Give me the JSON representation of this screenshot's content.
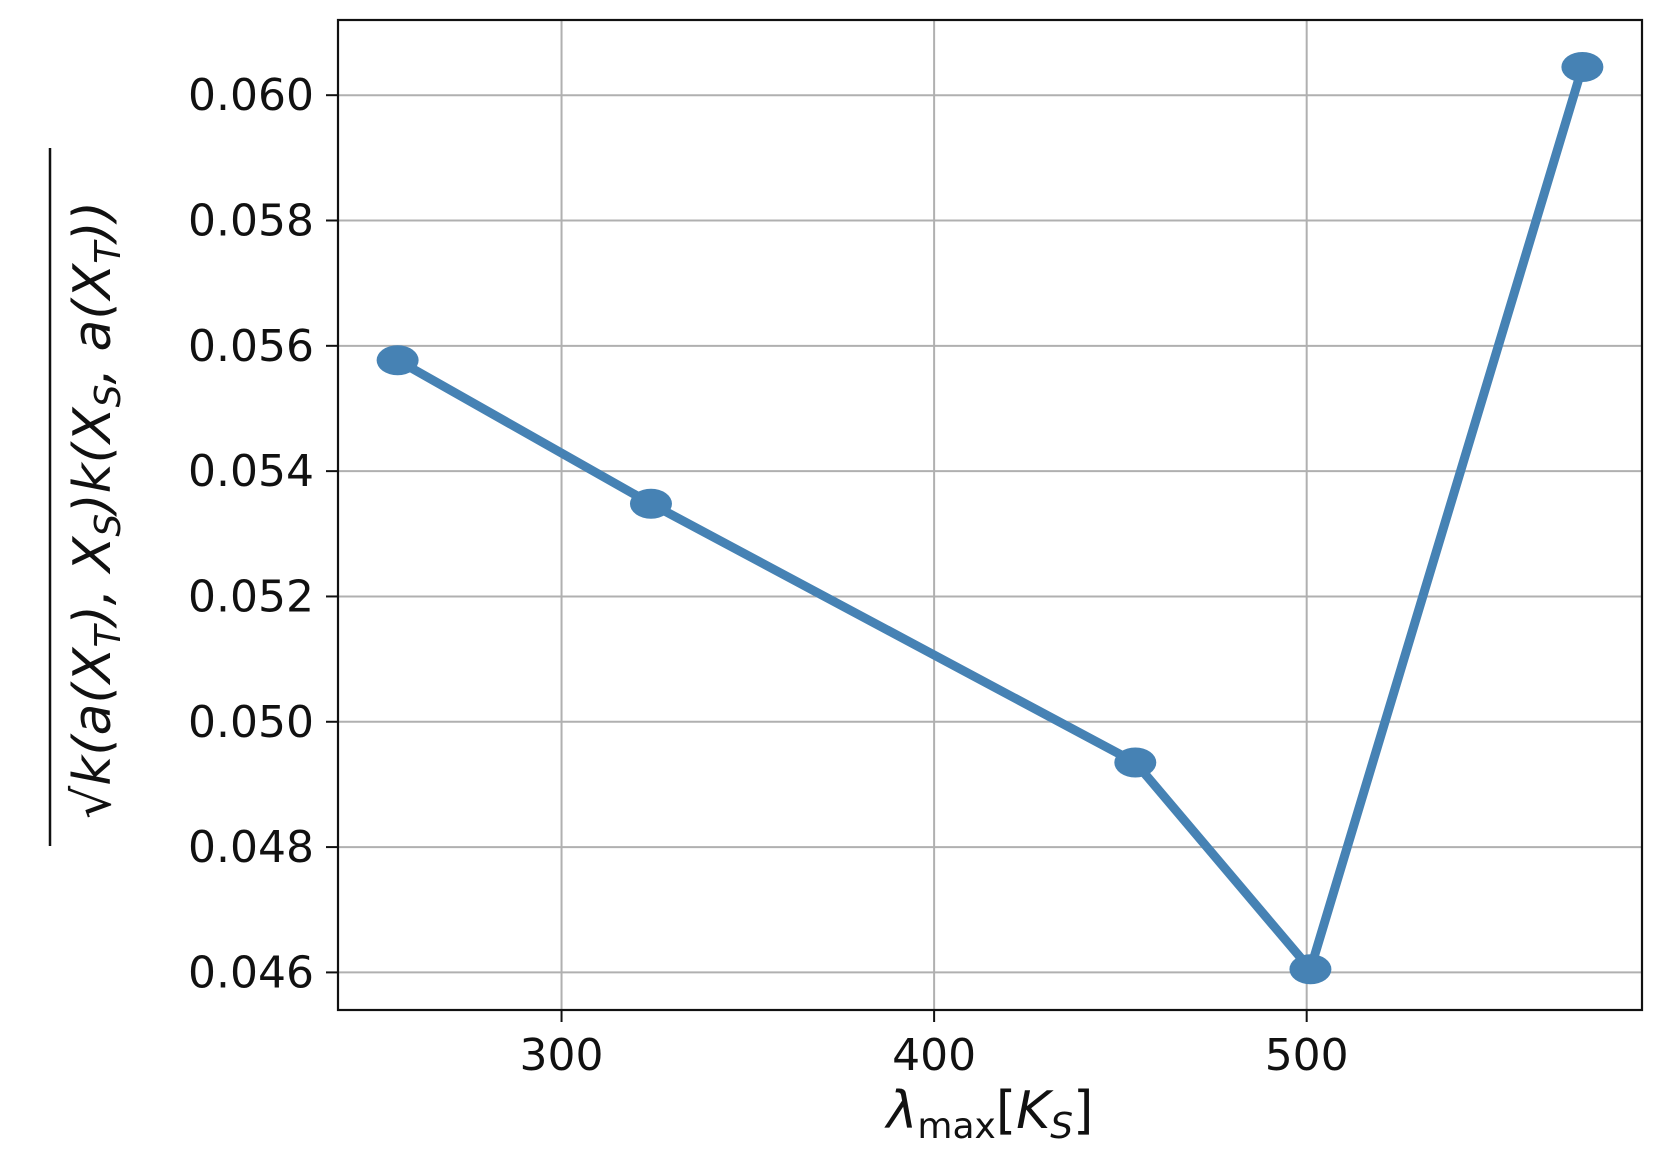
{
  "chart_data": {
    "type": "line",
    "title": "",
    "xlabel": "λmax[KS]",
    "xlabel_parts": {
      "base": "λ",
      "sub": "max",
      "bracket_open": "[",
      "k": "K",
      "k_sub": "S",
      "bracket_close": "]"
    },
    "ylabel": "√k(a(XT), XS)k(XS, a(XT))",
    "ylabel_parts": {
      "radical": "√",
      "expr_pre": "k(a(X",
      "sub1": "T",
      "expr_mid1": "), X",
      "sub2": "S",
      "expr_mid2": ")k(X",
      "sub3": "S",
      "expr_mid3": ", a(X",
      "sub4": "T",
      "expr_post": "))"
    },
    "xlim": [
      240,
      590
    ],
    "ylim": [
      0.0454,
      0.0612
    ],
    "xticks": [
      300,
      400,
      500
    ],
    "xtick_labels": [
      "300",
      "400",
      "500"
    ],
    "yticks": [
      0.046,
      0.048,
      0.05,
      0.052,
      0.054,
      0.056,
      0.058,
      0.06
    ],
    "ytick_labels": [
      "0.046",
      "0.048",
      "0.050",
      "0.052",
      "0.054",
      "0.056",
      "0.058",
      "0.060"
    ],
    "grid": true,
    "series": [
      {
        "color": "#4682b4",
        "marker": "circle",
        "x": [
          256,
          324,
          454,
          501,
          574
        ],
        "y": [
          0.05577,
          0.05348,
          0.04935,
          0.04605,
          0.06045
        ]
      }
    ]
  }
}
